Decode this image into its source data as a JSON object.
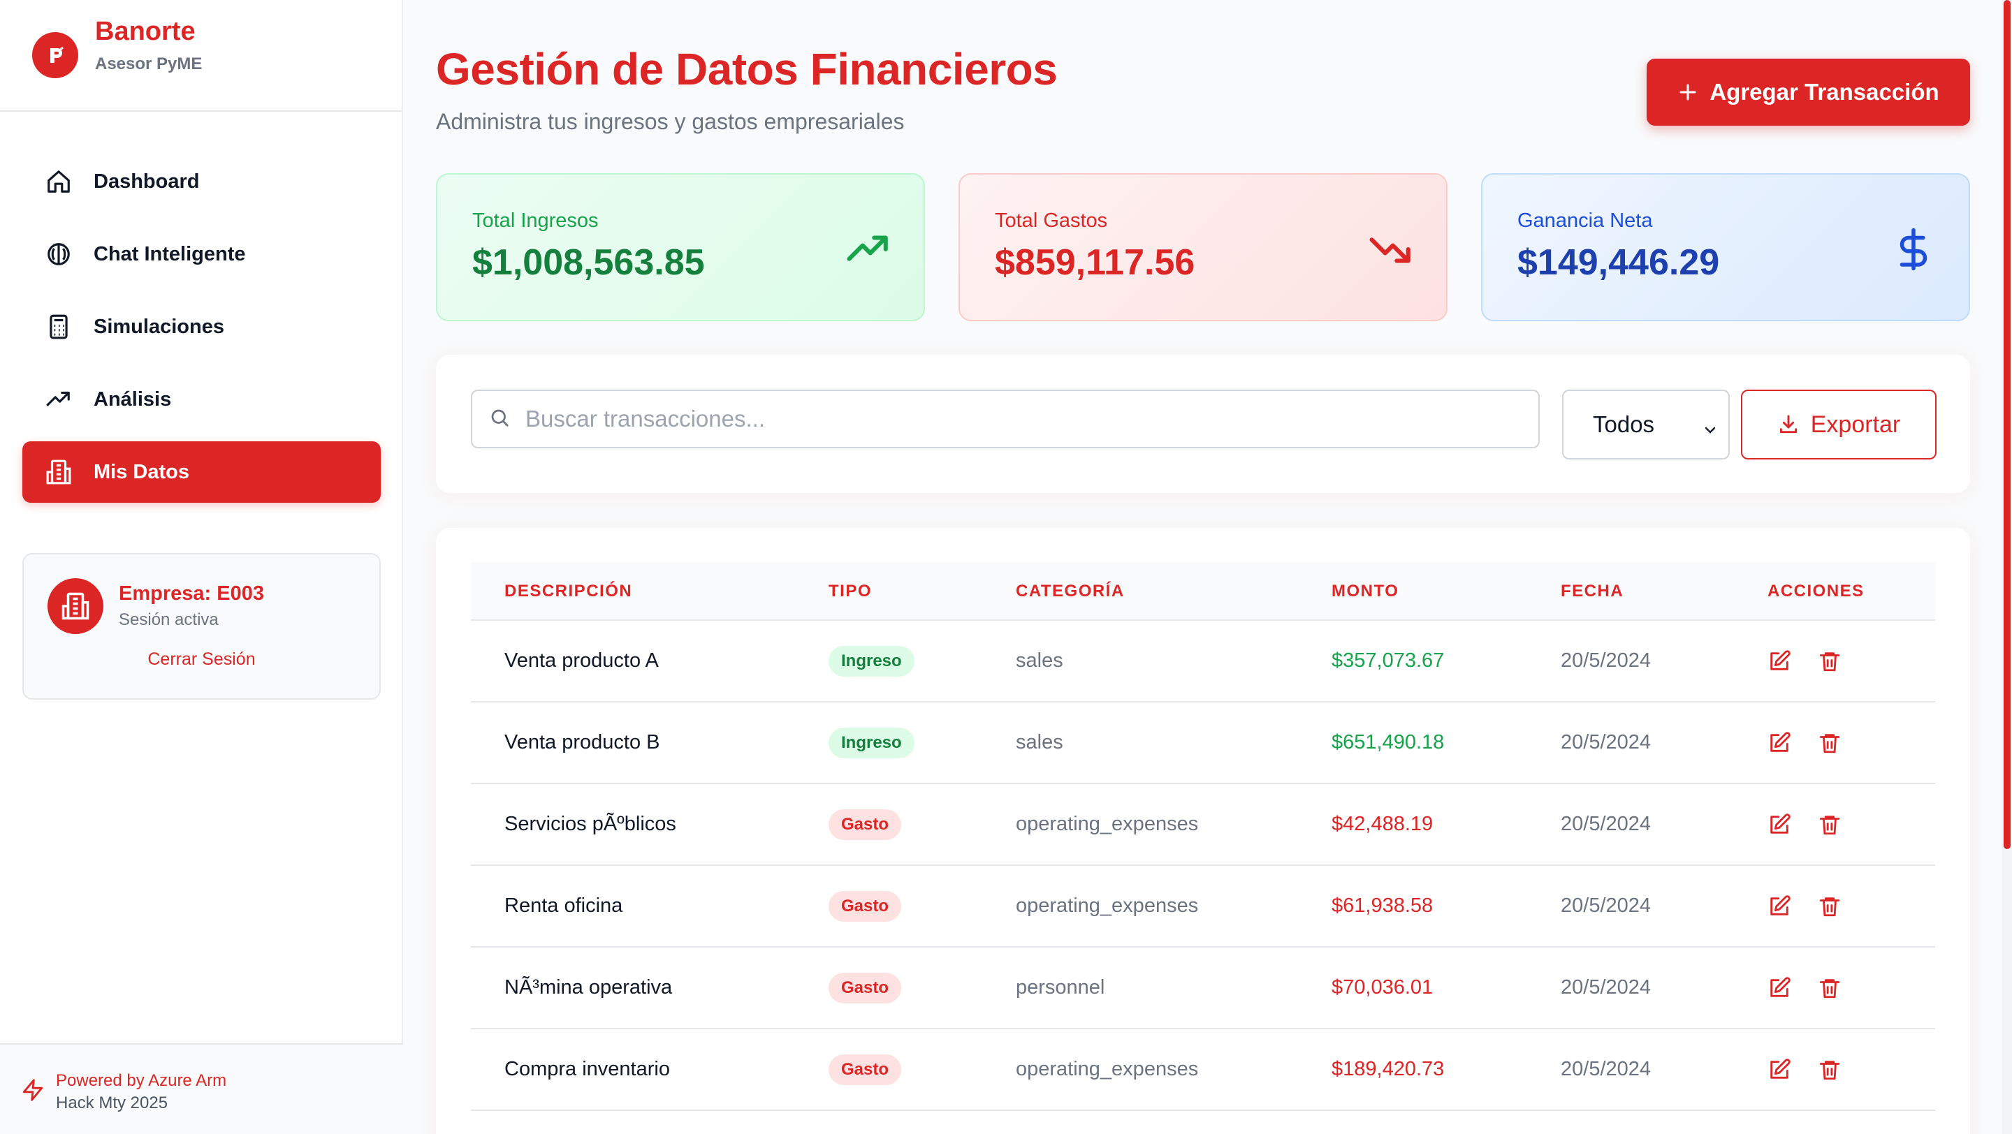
{
  "brand": {
    "name": "Banorte",
    "subtitle": "Asesor PyME"
  },
  "sidebar": {
    "items": [
      {
        "label": "Dashboard",
        "icon": "home-icon"
      },
      {
        "label": "Chat Inteligente",
        "icon": "brain-icon"
      },
      {
        "label": "Simulaciones",
        "icon": "calculator-icon"
      },
      {
        "label": "Análisis",
        "icon": "trending-up-icon"
      },
      {
        "label": "Mis Datos",
        "icon": "building-icon",
        "active": true
      }
    ],
    "session": {
      "company": "Empresa: E003",
      "status": "Sesión activa",
      "logout": "Cerrar Sesión"
    },
    "footer": {
      "line1": "Powered by Azure Arm",
      "line2": "Hack Mty 2025"
    }
  },
  "header": {
    "title": "Gestión de Datos Financieros",
    "subtitle": "Administra tus ingresos y gastos empresariales",
    "add_button": "Agregar Transacción"
  },
  "stats": {
    "income": {
      "label": "Total Ingresos",
      "value": "$1,008,563.85",
      "icon": "trending-up-icon"
    },
    "expenses": {
      "label": "Total Gastos",
      "value": "$859,117.56",
      "icon": "trending-down-icon"
    },
    "net": {
      "label": "Ganancia Neta",
      "value": "$149,446.29",
      "icon": "dollar-icon"
    }
  },
  "filters": {
    "search_placeholder": "Buscar transacciones...",
    "type_selected": "Todos",
    "export_label": "Exportar"
  },
  "table": {
    "headers": [
      "DESCRIPCIÓN",
      "TIPO",
      "CATEGORÍA",
      "MONTO",
      "FECHA",
      "ACCIONES"
    ],
    "rows": [
      {
        "description": "Venta producto A",
        "type": "Ingreso",
        "category": "sales",
        "amount": "$357,073.67",
        "date": "20/5/2024"
      },
      {
        "description": "Venta producto B",
        "type": "Ingreso",
        "category": "sales",
        "amount": "$651,490.18",
        "date": "20/5/2024"
      },
      {
        "description": "Servicios pÃºblicos",
        "type": "Gasto",
        "category": "operating_expenses",
        "amount": "$42,488.19",
        "date": "20/5/2024"
      },
      {
        "description": "Renta oficina",
        "type": "Gasto",
        "category": "operating_expenses",
        "amount": "$61,938.58",
        "date": "20/5/2024"
      },
      {
        "description": "NÃ³mina operativa",
        "type": "Gasto",
        "category": "personnel",
        "amount": "$70,036.01",
        "date": "20/5/2024"
      },
      {
        "description": "Compra inventario",
        "type": "Gasto",
        "category": "operating_expenses",
        "amount": "$189,420.73",
        "date": "20/5/2024"
      }
    ]
  },
  "colors": {
    "brand": "#dc2626",
    "income": "#16a34a",
    "net": "#1e40af"
  }
}
